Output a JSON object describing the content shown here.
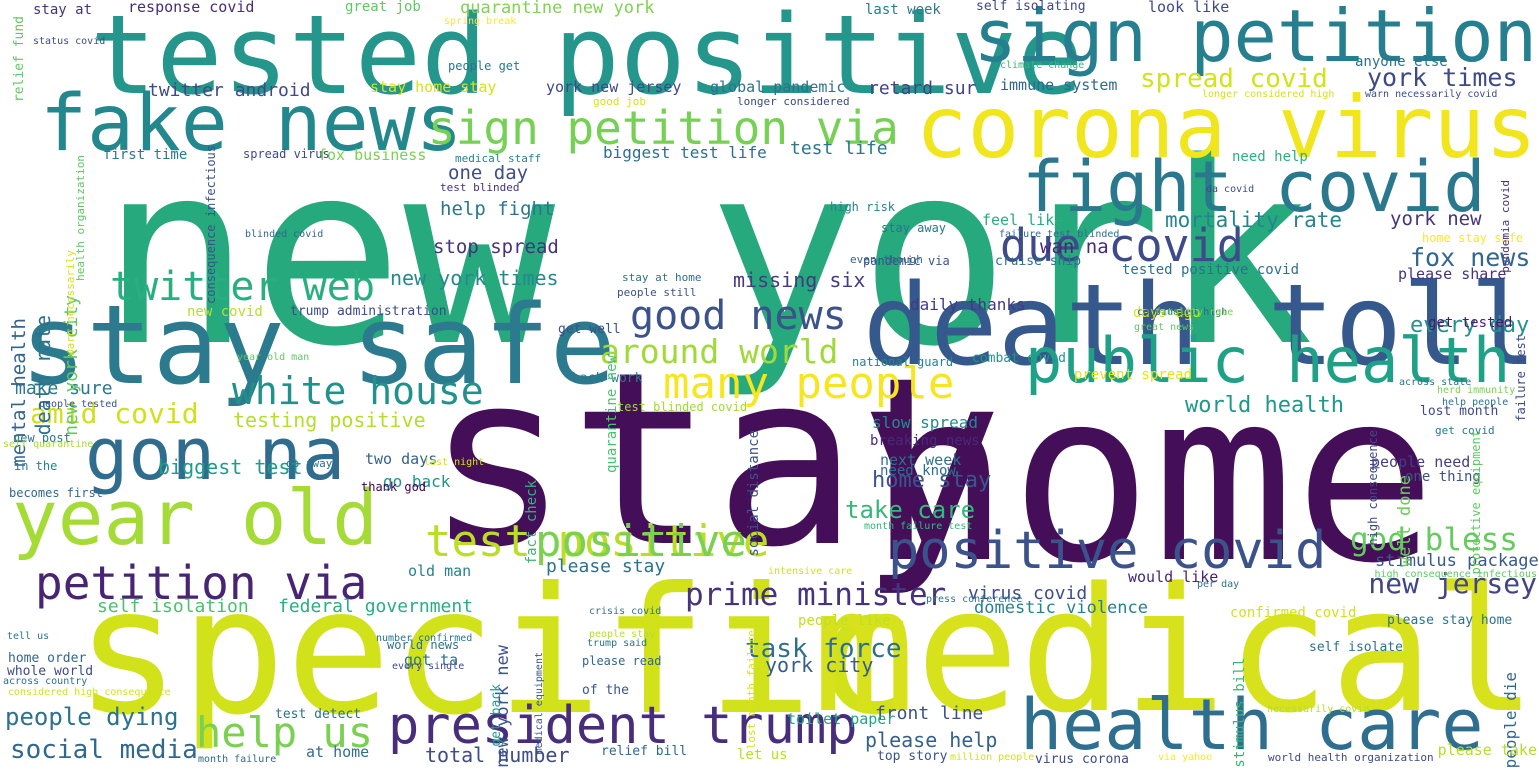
{
  "words": [
    {
      "text": "new york",
      "color": "#26a97c"
    },
    {
      "text": "stay",
      "color": "#440f58"
    },
    {
      "text": "home",
      "color": "#440f58"
    },
    {
      "text": "specific",
      "color": "#d2e21a"
    },
    {
      "text": "medical",
      "color": "#d7e21c"
    },
    {
      "text": "tested positive",
      "color": "#25968b"
    },
    {
      "text": "death toll",
      "color": "#35598c"
    },
    {
      "text": "stay safe",
      "color": "#2b7a8d"
    },
    {
      "text": "corona virus",
      "color": "#f1e51d"
    },
    {
      "text": "sign petition",
      "color": "#257f8e"
    },
    {
      "text": "fake news",
      "color": "#23888e"
    },
    {
      "text": "fight covid",
      "color": "#2a788e"
    },
    {
      "text": "public health",
      "color": "#1fa187"
    },
    {
      "text": "health care",
      "color": "#2e6e8e"
    },
    {
      "text": "president trump",
      "color": "#472d7b"
    },
    {
      "text": "year old",
      "color": "#a5db36"
    },
    {
      "text": "gon na",
      "color": "#2f6c8e"
    },
    {
      "text": "positive covid",
      "color": "#3b528b"
    },
    {
      "text": "petition via",
      "color": "#482475"
    },
    {
      "text": "sign petition via",
      "color": "#75d054"
    },
    {
      "text": "due covid",
      "color": "#3e4a89"
    },
    {
      "text": "many people",
      "color": "#f6e620"
    },
    {
      "text": "white house",
      "color": "#21918c"
    },
    {
      "text": "test positive",
      "color": "#bade28"
    },
    {
      "text": "positive",
      "color": "#7ad151"
    },
    {
      "text": "twitter web",
      "color": "#29af7f"
    },
    {
      "text": "good news",
      "color": "#3b528b"
    },
    {
      "text": "help us",
      "color": "#7ad151"
    },
    {
      "text": "prime minister",
      "color": "#46337e"
    },
    {
      "text": "around world",
      "color": "#a0da39"
    },
    {
      "text": "god bless",
      "color": "#65cb5e"
    },
    {
      "text": "new jersey",
      "color": "#414487"
    },
    {
      "text": "amid covid",
      "color": "#d0e11c"
    },
    {
      "text": "social media",
      "color": "#31688e"
    },
    {
      "text": "people dying",
      "color": "#2c728e"
    },
    {
      "text": "task force",
      "color": "#2e6f8e"
    },
    {
      "text": "fox news",
      "color": "#31668e"
    },
    {
      "text": "york times",
      "color": "#3e4989"
    },
    {
      "text": "spread covid",
      "color": "#d2e21b"
    },
    {
      "text": "mortality rate",
      "color": "#25858e"
    },
    {
      "text": "every day",
      "color": "#20938c"
    },
    {
      "text": "world health",
      "color": "#1f988b"
    },
    {
      "text": "take care",
      "color": "#35b779"
    },
    {
      "text": "home stay",
      "color": "#3a548c"
    },
    {
      "text": "please help",
      "color": "#355f8d"
    },
    {
      "text": "stimulus package",
      "color": "#38598c"
    },
    {
      "text": "york city",
      "color": "#355e8d"
    },
    {
      "text": "front line",
      "color": "#3b528b"
    },
    {
      "text": "total number",
      "color": "#3e4c8a"
    },
    {
      "text": "biggest test",
      "color": "#1e9c89"
    },
    {
      "text": "testing positive",
      "color": "#b5de2b"
    },
    {
      "text": "make sure",
      "color": "#2a788e"
    },
    {
      "text": "twitter android",
      "color": "#3e4a89"
    },
    {
      "text": "missing six",
      "color": "#443b84"
    },
    {
      "text": "new york times",
      "color": "#23898e"
    },
    {
      "text": "help fight",
      "color": "#2a768e"
    },
    {
      "text": "stop spread",
      "color": "#46327e"
    },
    {
      "text": "wan na",
      "color": "#482878"
    },
    {
      "text": "one day",
      "color": "#3e4c8a"
    },
    {
      "text": "test life",
      "color": "#2a778e"
    },
    {
      "text": "york new",
      "color": "#46337e"
    },
    {
      "text": "retard sur",
      "color": "#414487"
    },
    {
      "text": "self isolation",
      "color": "#4ac16d"
    },
    {
      "text": "federal government",
      "color": "#28ae80"
    },
    {
      "text": "please stay",
      "color": "#2c718e"
    },
    {
      "text": "virus covid",
      "color": "#3d4e8a"
    },
    {
      "text": "domestic violence",
      "color": "#26818e"
    },
    {
      "text": "death rate",
      "color": "#2c728e"
    },
    {
      "text": "mental health",
      "color": "#32648e"
    },
    {
      "text": "new york city",
      "color": "#5ec962"
    },
    {
      "text": "new york new",
      "color": "#3b528b"
    },
    {
      "text": "quarantine new york",
      "color": "#7fd34e"
    },
    {
      "text": "great job",
      "color": "#5ec962"
    },
    {
      "text": "response covid",
      "color": "#472c7a"
    },
    {
      "text": "stay at",
      "color": "#46337e"
    },
    {
      "text": "look like",
      "color": "#3e4989"
    },
    {
      "text": "anyone else",
      "color": "#2c728e"
    },
    {
      "text": "last week",
      "color": "#297b8e"
    },
    {
      "text": "self isolating",
      "color": "#3f4889"
    },
    {
      "text": "people get",
      "color": "#2a768e"
    },
    {
      "text": "stay home stay",
      "color": "#d8e219"
    },
    {
      "text": "york new jersey",
      "color": "#3e4989"
    },
    {
      "text": "global pandemic",
      "color": "#2c728e"
    },
    {
      "text": "immune system",
      "color": "#31678e"
    },
    {
      "text": "biggest test life",
      "color": "#2e6e8e"
    },
    {
      "text": "fox business",
      "color": "#7ad151"
    },
    {
      "text": "first time",
      "color": "#2a788e"
    },
    {
      "text": "spread virus",
      "color": "#3e4a89"
    },
    {
      "text": "need help",
      "color": "#2ab07f"
    },
    {
      "text": "feel like",
      "color": "#27ad81"
    },
    {
      "text": "cruise ship",
      "color": "#2c718e"
    },
    {
      "text": "tested positive covid",
      "color": "#2c728e"
    },
    {
      "text": "please share",
      "color": "#46327e"
    },
    {
      "text": "get tested",
      "color": "#481b6d"
    },
    {
      "text": "days ago",
      "color": "#d8e219"
    },
    {
      "text": "daily thanks",
      "color": "#443983"
    },
    {
      "text": "trump administration",
      "color": "#3e4a89"
    },
    {
      "text": "new covid",
      "color": "#b8de29"
    },
    {
      "text": "get well",
      "color": "#3b528b"
    },
    {
      "text": "back work",
      "color": "#2a788e"
    },
    {
      "text": "combat covid",
      "color": "#1f978b"
    },
    {
      "text": "prevent spread",
      "color": "#e2e418"
    },
    {
      "text": "slow spread",
      "color": "#23898e"
    },
    {
      "text": "breaking news",
      "color": "#472a7a"
    },
    {
      "text": "next week",
      "color": "#2c728e"
    },
    {
      "text": "need know",
      "color": "#2e6e8e"
    },
    {
      "text": "lost month",
      "color": "#3e4989"
    },
    {
      "text": "people need",
      "color": "#433e85"
    },
    {
      "text": "one thing",
      "color": "#3b528b"
    },
    {
      "text": "well done",
      "color": "#6ccd5a"
    },
    {
      "text": "fact check",
      "color": "#35b779"
    },
    {
      "text": "quarantine new",
      "color": "#4ac16d"
    },
    {
      "text": "social distance",
      "color": "#3b528b"
    },
    {
      "text": "two days",
      "color": "#33628d"
    },
    {
      "text": "go back",
      "color": "#20938c"
    },
    {
      "text": "old man",
      "color": "#26828e"
    },
    {
      "text": "thank god",
      "color": "#440154"
    },
    {
      "text": "got ta",
      "color": "#2c728e"
    },
    {
      "text": "get back",
      "color": "#1f9e89"
    },
    {
      "text": "whole world",
      "color": "#3e4989"
    },
    {
      "text": "home order",
      "color": "#31668e"
    },
    {
      "text": "new post",
      "color": "#2c728e"
    },
    {
      "text": "in the",
      "color": "#26828e"
    },
    {
      "text": "becomes first",
      "color": "#31688e"
    },
    {
      "text": "world news",
      "color": "#2c728e"
    },
    {
      "text": "please read",
      "color": "#31678e"
    },
    {
      "text": "of the",
      "color": "#3b528b"
    },
    {
      "text": "toilet paper",
      "color": "#22a785"
    },
    {
      "text": "people like",
      "color": "#c0df25"
    },
    {
      "text": "self isolate",
      "color": "#2c728e"
    },
    {
      "text": "people die",
      "color": "#31668e"
    },
    {
      "text": "please take",
      "color": "#b5de2b"
    },
    {
      "text": "stimulus bill",
      "color": "#35b779"
    },
    {
      "text": "please stay home",
      "color": "#2c728e"
    },
    {
      "text": "confirmed covid",
      "color": "#d2e21b"
    },
    {
      "text": "would like",
      "color": "#482475"
    },
    {
      "text": "at home",
      "color": "#2e6e8e"
    },
    {
      "text": "let us",
      "color": "#b5de2b"
    },
    {
      "text": "relief bill",
      "color": "#31688e"
    },
    {
      "text": "test detect",
      "color": "#2c728e"
    },
    {
      "text": "top story",
      "color": "#3b528b"
    },
    {
      "text": "virus corona",
      "color": "#3e4a89"
    },
    {
      "text": "month failure",
      "color": "#31688e"
    },
    {
      "text": "world health organization",
      "color": "#3e4989"
    },
    {
      "text": "relief fund",
      "color": "#5ec962"
    },
    {
      "text": "status covid",
      "color": "#3e4989"
    },
    {
      "text": "spring break",
      "color": "#fde725"
    },
    {
      "text": "climate change",
      "color": "#35b779"
    },
    {
      "text": "longer considered high",
      "color": "#d2e21b"
    },
    {
      "text": "warn necessarily covid",
      "color": "#3e4a89"
    },
    {
      "text": "good job",
      "color": "#d8e219"
    },
    {
      "text": "longer considered",
      "color": "#3e4989"
    },
    {
      "text": "medical staff",
      "color": "#26828e"
    },
    {
      "text": "test blinded",
      "color": "#46327e"
    },
    {
      "text": "high risk",
      "color": "#25848e"
    },
    {
      "text": "stay away",
      "color": "#2a768e"
    },
    {
      "text": "pandemic via",
      "color": "#3b528b"
    },
    {
      "text": "blinded covid",
      "color": "#31688e"
    },
    {
      "text": "even though",
      "color": "#33638d"
    },
    {
      "text": "stay at home",
      "color": "#2c728e"
    },
    {
      "text": "people still",
      "color": "#3b528b"
    },
    {
      "text": "da covid",
      "color": "#3e4a89"
    },
    {
      "text": "failure test blinded",
      "color": "#2e6e8e"
    },
    {
      "text": "considered high",
      "color": "#31678e"
    },
    {
      "text": "fatality rate",
      "color": "#7ad151"
    },
    {
      "text": "home stay safe",
      "color": "#fde725"
    },
    {
      "text": "great news",
      "color": "#5ec962"
    },
    {
      "text": "across state",
      "color": "#2c728e"
    },
    {
      "text": "herd immunity",
      "color": "#7ad151"
    },
    {
      "text": "help people",
      "color": "#2c728e"
    },
    {
      "text": "get covid",
      "color": "#2a788e"
    },
    {
      "text": "national guard",
      "color": "#26828e"
    },
    {
      "text": "year old man",
      "color": "#5ec962"
    },
    {
      "text": "people tested",
      "color": "#3b528b"
    },
    {
      "text": "self quarantine",
      "color": "#a5db36"
    },
    {
      "text": "go away",
      "color": "#2c728e"
    },
    {
      "text": "last night",
      "color": "#d2e21b"
    },
    {
      "text": "test blinded covid",
      "color": "#a0da39"
    },
    {
      "text": "month failure test",
      "color": "#35b779"
    },
    {
      "text": "intensive care",
      "color": "#d2e21b"
    },
    {
      "text": "per day",
      "color": "#2c728e"
    },
    {
      "text": "high consequence infectious",
      "color": "#5ec962"
    },
    {
      "text": "press conference",
      "color": "#2c728e"
    },
    {
      "text": "number confirmed",
      "color": "#2c728e"
    },
    {
      "text": "people stay",
      "color": "#b5de2b"
    },
    {
      "text": "tell us",
      "color": "#2a788e"
    },
    {
      "text": "crisis covid",
      "color": "#2c728e"
    },
    {
      "text": "trump said",
      "color": "#2c728e"
    },
    {
      "text": "every single",
      "color": "#3e4a89"
    },
    {
      "text": "across country",
      "color": "#2e6e8e"
    },
    {
      "text": "considered high consequence",
      "color": "#d2e21b"
    },
    {
      "text": "necessarily covid",
      "color": "#b5de2b"
    },
    {
      "text": "million people",
      "color": "#d2e21b"
    },
    {
      "text": "via yahoo",
      "color": "#fde725"
    },
    {
      "text": "medical equipment",
      "color": "#3b528b"
    },
    {
      "text": "lost month failure",
      "color": "#d8e219"
    },
    {
      "text": "high consequence",
      "color": "#3e4989"
    },
    {
      "text": "protective equipment",
      "color": "#5ec962"
    },
    {
      "text": "failure test",
      "color": "#3e4989"
    },
    {
      "text": "pandemia covid",
      "color": "#46327e"
    },
    {
      "text": "consequence infectious",
      "color": "#3b528b"
    },
    {
      "text": "health organization",
      "color": "#5ec962"
    },
    {
      "text": "warn necessarily",
      "color": "#d8e219"
    }
  ]
}
